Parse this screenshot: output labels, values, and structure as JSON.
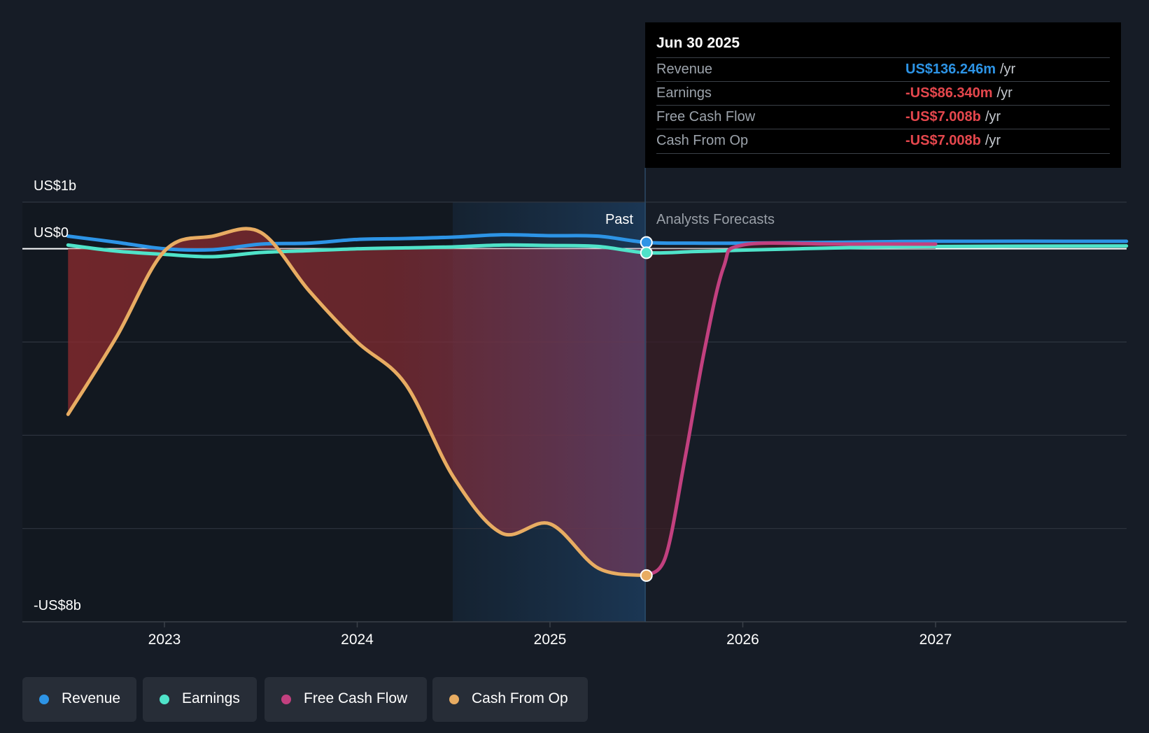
{
  "chart_data": {
    "type": "line",
    "x_ticks": [
      "2023",
      "2024",
      "2025",
      "2026",
      "2027"
    ],
    "y_axis": {
      "top_label": "US$1b",
      "zero_label": "US$0",
      "bottom_label": "-US$8b",
      "ylim_billions": [
        -8,
        1
      ]
    },
    "sections": {
      "past_label": "Past",
      "forecast_label": "Analysts Forecasts"
    },
    "series": [
      {
        "name": "Revenue",
        "color": "#2d94e6",
        "points": [
          [
            2022.5,
            0.27
          ],
          [
            2022.75,
            0.14
          ],
          [
            2023.0,
            0.0
          ],
          [
            2023.25,
            -0.02
          ],
          [
            2023.5,
            0.1
          ],
          [
            2023.75,
            0.12
          ],
          [
            2024.0,
            0.2
          ],
          [
            2024.25,
            0.22
          ],
          [
            2024.5,
            0.25
          ],
          [
            2024.75,
            0.3
          ],
          [
            2025.0,
            0.28
          ],
          [
            2025.25,
            0.27
          ],
          [
            2025.5,
            0.136
          ],
          [
            2025.75,
            0.12
          ],
          [
            2026.0,
            0.12
          ],
          [
            2026.5,
            0.14
          ],
          [
            2027.0,
            0.16
          ],
          [
            2027.99,
            0.16
          ]
        ]
      },
      {
        "name": "Earnings",
        "color": "#4fe3c9",
        "points": [
          [
            2022.5,
            0.08
          ],
          [
            2022.75,
            -0.05
          ],
          [
            2023.0,
            -0.12
          ],
          [
            2023.25,
            -0.17
          ],
          [
            2023.5,
            -0.08
          ],
          [
            2023.75,
            -0.04
          ],
          [
            2024.0,
            0.0
          ],
          [
            2024.25,
            0.02
          ],
          [
            2024.5,
            0.04
          ],
          [
            2024.75,
            0.08
          ],
          [
            2025.0,
            0.07
          ],
          [
            2025.25,
            0.05
          ],
          [
            2025.5,
            -0.086
          ],
          [
            2025.75,
            -0.06
          ],
          [
            2026.0,
            -0.03
          ],
          [
            2026.5,
            0.02
          ],
          [
            2027.0,
            0.05
          ],
          [
            2027.99,
            0.06
          ]
        ]
      },
      {
        "name": "Free Cash Flow",
        "color": "#c2407f",
        "points": [
          [
            2025.5,
            -7.008
          ],
          [
            2025.6,
            -6.6
          ],
          [
            2025.7,
            -4.5
          ],
          [
            2025.8,
            -2.2
          ],
          [
            2025.9,
            -0.4
          ],
          [
            2026.0,
            0.08
          ],
          [
            2026.5,
            0.1
          ],
          [
            2027.0,
            0.1
          ]
        ]
      },
      {
        "name": "Cash From Op",
        "color": "#e8ac62",
        "points": [
          [
            2022.5,
            -3.55
          ],
          [
            2022.75,
            -1.9
          ],
          [
            2023.0,
            -0.05
          ],
          [
            2023.25,
            0.27
          ],
          [
            2023.5,
            0.35
          ],
          [
            2023.75,
            -0.9
          ],
          [
            2024.0,
            -2.0
          ],
          [
            2024.25,
            -2.9
          ],
          [
            2024.5,
            -4.9
          ],
          [
            2024.75,
            -6.1
          ],
          [
            2025.0,
            -5.9
          ],
          [
            2025.25,
            -6.85
          ],
          [
            2025.5,
            -7.008
          ]
        ]
      }
    ]
  },
  "tooltip": {
    "date": "Jun 30 2025",
    "rows": [
      {
        "label": "Revenue",
        "value": "US$136.246m",
        "unit": "/yr",
        "color": "#2d94e6"
      },
      {
        "label": "Earnings",
        "value": "-US$86.340m",
        "unit": "/yr",
        "color": "#e5474d"
      },
      {
        "label": "Free Cash Flow",
        "value": "-US$7.008b",
        "unit": "/yr",
        "color": "#e5474d"
      },
      {
        "label": "Cash From Op",
        "value": "-US$7.008b",
        "unit": "/yr",
        "color": "#e5474d"
      }
    ]
  },
  "legend": [
    {
      "label": "Revenue",
      "color": "#2d94e6"
    },
    {
      "label": "Earnings",
      "color": "#4fe3c9"
    },
    {
      "label": "Free Cash Flow",
      "color": "#c2407f"
    },
    {
      "label": "Cash From Op",
      "color": "#e8ac62"
    }
  ]
}
